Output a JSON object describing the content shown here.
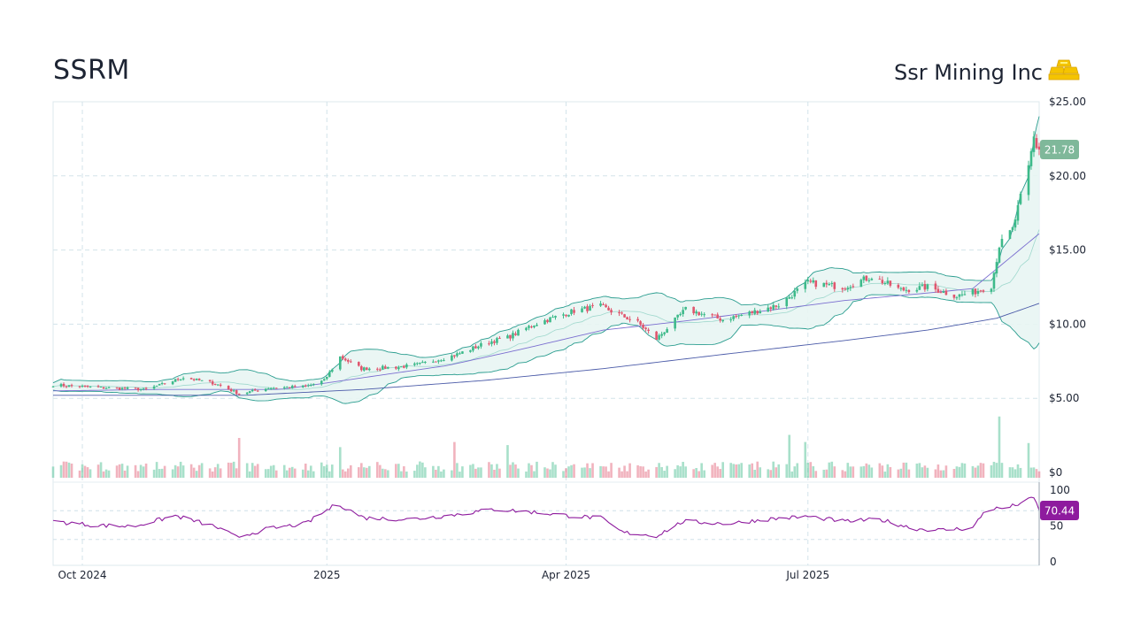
{
  "header": {
    "ticker": "SSRM",
    "company": "Ssr Mining Inc",
    "logo_icon": "gold-bars-icon"
  },
  "colors": {
    "up": "#3dba8a",
    "down": "#e0566e",
    "band_fill": "#e8f5f3",
    "band_line": "#2a9d8f",
    "sma50": "#7b6fd0",
    "sma200": "#4a5aa8",
    "rsi": "#8e1b9e",
    "last_badge": "#7fb89a",
    "rsi_badge": "#8e1b9e"
  },
  "chart_data": {
    "type": "candlestick",
    "title": "SSRM",
    "price_axis": {
      "min": 0,
      "max": 25,
      "ticks": [
        {
          "value": 25,
          "label": "$25.00"
        },
        {
          "value": 20,
          "label": "$20.00"
        },
        {
          "value": 15,
          "label": "$15.00"
        },
        {
          "value": 10,
          "label": "$10.00"
        },
        {
          "value": 5,
          "label": "$5.00"
        },
        {
          "value": 0,
          "label": "$0"
        }
      ]
    },
    "rsi_axis": {
      "min": 0,
      "max": 100,
      "ticks": [
        {
          "value": 100,
          "label": "100"
        },
        {
          "value": 50,
          "label": "50"
        },
        {
          "value": 0,
          "label": "0"
        }
      ],
      "bands": [
        70,
        30
      ]
    },
    "x_axis": {
      "start": "2024-09-20",
      "end": "2025-09-26",
      "ticks": [
        {
          "date": "2024-10-01",
          "label": "Oct 2024"
        },
        {
          "date": "2025-01-01",
          "label": "2025"
        },
        {
          "date": "2025-04-01",
          "label": "Apr 2025"
        },
        {
          "date": "2025-07-01",
          "label": "Jul 2025"
        }
      ]
    },
    "price_path": [
      [
        "2024-09-20",
        5.9
      ],
      [
        "2024-10-10",
        5.7
      ],
      [
        "2024-10-25",
        5.6
      ],
      [
        "2024-11-08",
        6.4
      ],
      [
        "2024-11-20",
        6.0
      ],
      [
        "2024-11-29",
        5.3
      ],
      [
        "2024-12-10",
        5.7
      ],
      [
        "2024-12-24",
        5.8
      ],
      [
        "2024-12-31",
        6.2
      ],
      [
        "2025-01-06",
        7.8
      ],
      [
        "2025-01-14",
        7.0
      ],
      [
        "2025-01-28",
        7.1
      ],
      [
        "2025-02-05",
        7.3
      ],
      [
        "2025-02-18",
        7.9
      ],
      [
        "2025-03-03",
        8.8
      ],
      [
        "2025-03-10",
        9.1
      ],
      [
        "2025-03-20",
        10.0
      ],
      [
        "2025-04-04",
        10.9
      ],
      [
        "2025-04-14",
        11.2
      ],
      [
        "2025-04-28",
        10.1
      ],
      [
        "2025-05-05",
        9.0
      ],
      [
        "2025-05-16",
        11.0
      ],
      [
        "2025-05-30",
        10.3
      ],
      [
        "2025-06-10",
        10.8
      ],
      [
        "2025-06-20",
        11.3
      ],
      [
        "2025-07-01",
        12.8
      ],
      [
        "2025-07-14",
        12.5
      ],
      [
        "2025-07-25",
        13.2
      ],
      [
        "2025-08-05",
        12.3
      ],
      [
        "2025-08-15",
        12.5
      ],
      [
        "2025-08-26",
        11.9
      ],
      [
        "2025-09-02",
        12.2
      ],
      [
        "2025-09-08",
        12.6
      ],
      [
        "2025-09-11",
        15.3
      ],
      [
        "2025-09-16",
        16.4
      ],
      [
        "2025-09-19",
        18.5
      ],
      [
        "2025-09-22",
        20.5
      ],
      [
        "2025-09-24",
        22.6
      ],
      [
        "2025-09-25",
        22.0
      ],
      [
        "2025-09-26",
        21.78
      ]
    ],
    "sma50_path": [
      [
        "2024-09-20",
        5.5
      ],
      [
        "2024-11-01",
        5.6
      ],
      [
        "2024-12-15",
        5.6
      ],
      [
        "2025-01-15",
        6.4
      ],
      [
        "2025-02-15",
        7.2
      ],
      [
        "2025-03-15",
        8.3
      ],
      [
        "2025-04-15",
        9.6
      ],
      [
        "2025-05-15",
        10.2
      ],
      [
        "2025-06-15",
        10.9
      ],
      [
        "2025-07-15",
        11.6
      ],
      [
        "2025-08-15",
        12.1
      ],
      [
        "2025-09-01",
        12.4
      ],
      [
        "2025-09-26",
        16.1
      ]
    ],
    "sma200_path": [
      [
        "2024-09-20",
        5.2
      ],
      [
        "2024-12-01",
        5.2
      ],
      [
        "2025-01-15",
        5.6
      ],
      [
        "2025-03-01",
        6.2
      ],
      [
        "2025-04-15",
        7.0
      ],
      [
        "2025-06-01",
        8.0
      ],
      [
        "2025-07-15",
        8.9
      ],
      [
        "2025-08-15",
        9.6
      ],
      [
        "2025-09-10",
        10.4
      ],
      [
        "2025-09-26",
        11.4
      ]
    ],
    "rsi_path": [
      [
        "2024-09-20",
        55
      ],
      [
        "2024-10-05",
        50
      ],
      [
        "2024-10-20",
        48
      ],
      [
        "2024-11-05",
        63
      ],
      [
        "2024-11-20",
        48
      ],
      [
        "2024-11-28",
        33
      ],
      [
        "2024-12-10",
        45
      ],
      [
        "2024-12-24",
        52
      ],
      [
        "2025-01-05",
        80
      ],
      [
        "2025-01-15",
        60
      ],
      [
        "2025-02-01",
        58
      ],
      [
        "2025-02-15",
        63
      ],
      [
        "2025-03-05",
        72
      ],
      [
        "2025-03-20",
        68
      ],
      [
        "2025-04-05",
        62
      ],
      [
        "2025-04-14",
        60
      ],
      [
        "2025-04-22",
        40
      ],
      [
        "2025-05-05",
        35
      ],
      [
        "2025-05-15",
        55
      ],
      [
        "2025-06-01",
        52
      ],
      [
        "2025-06-15",
        58
      ],
      [
        "2025-07-01",
        62
      ],
      [
        "2025-07-15",
        55
      ],
      [
        "2025-07-28",
        58
      ],
      [
        "2025-08-10",
        45
      ],
      [
        "2025-08-20",
        43
      ],
      [
        "2025-09-01",
        46
      ],
      [
        "2025-09-06",
        72
      ],
      [
        "2025-09-14",
        74
      ],
      [
        "2025-09-20",
        82
      ],
      [
        "2025-09-24",
        88
      ],
      [
        "2025-09-26",
        70.44
      ]
    ],
    "volume_spikes": [
      [
        "2024-11-29",
        3.9
      ],
      [
        "2025-01-06",
        3.0
      ],
      [
        "2025-02-18",
        3.5
      ],
      [
        "2025-03-10",
        3.2
      ],
      [
        "2025-06-24",
        4.2
      ],
      [
        "2025-06-30",
        3.5
      ],
      [
        "2025-09-11",
        6.0
      ],
      [
        "2025-09-22",
        3.4
      ]
    ],
    "volume_max": 6.5,
    "last_price": {
      "value": 21.78,
      "label": "21.78"
    },
    "last_rsi": {
      "value": 70.44,
      "label": "70.44"
    },
    "series": [
      {
        "name": "Price (candles)"
      },
      {
        "name": "Bollinger Bands"
      },
      {
        "name": "50-day SMA"
      },
      {
        "name": "200-day SMA"
      },
      {
        "name": "Volume"
      },
      {
        "name": "RSI"
      }
    ]
  }
}
